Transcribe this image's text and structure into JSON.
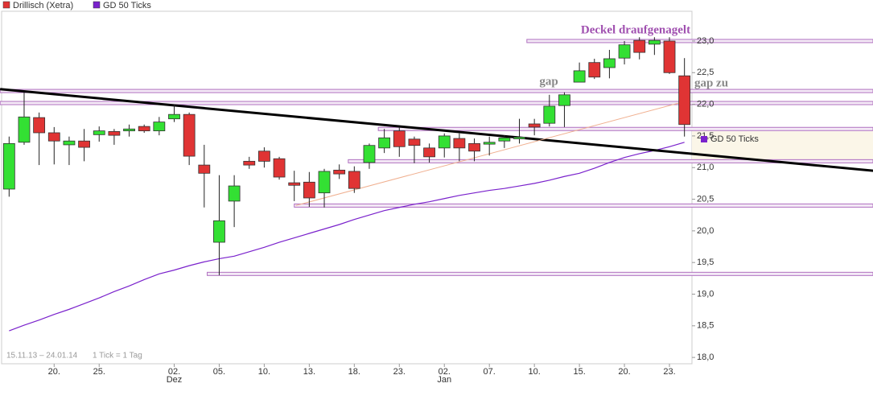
{
  "chart_data": {
    "type": "candlestick",
    "legend_position": "top-left",
    "categories": [
      null,
      null,
      null,
      "20.",
      null,
      null,
      "25.",
      null,
      null,
      null,
      null,
      "02.",
      null,
      null,
      "05.",
      null,
      null,
      "10.",
      null,
      null,
      "13.",
      null,
      null,
      "18.",
      null,
      null,
      "23.",
      null,
      null,
      "02.",
      null,
      null,
      "07.",
      null,
      null,
      "10.",
      null,
      null,
      "15.",
      null,
      null,
      "20.",
      null,
      null,
      "23.",
      null
    ],
    "category_sublabels": [
      null,
      null,
      null,
      null,
      null,
      null,
      null,
      null,
      null,
      null,
      null,
      "Dez",
      null,
      null,
      null,
      null,
      null,
      null,
      null,
      null,
      null,
      null,
      null,
      null,
      null,
      null,
      null,
      null,
      null,
      "Jan",
      null,
      null,
      null,
      null,
      null,
      null,
      null,
      null,
      null,
      null,
      null,
      null,
      null,
      null,
      null,
      null
    ],
    "series": [
      {
        "name": "Drillisch (Xetra)",
        "type": "candlestick",
        "color": "#e03434",
        "up_color": "#33e033",
        "open": [
          20.66,
          21.4,
          21.79,
          21.55,
          21.36,
          21.42,
          21.52,
          21.57,
          21.58,
          21.65,
          21.58,
          21.77,
          21.84,
          21.04,
          19.82,
          20.47,
          21.1,
          21.26,
          21.14,
          20.76,
          20.77,
          20.6,
          20.96,
          20.94,
          21.08,
          21.31,
          21.58,
          21.45,
          21.31,
          21.31,
          21.46,
          21.38,
          21.37,
          21.42,
          21.46,
          21.69,
          21.7,
          21.98,
          22.35,
          22.66,
          22.58,
          22.73,
          23.01,
          22.95,
          23.0,
          22.45
        ],
        "high": [
          21.49,
          22.19,
          21.87,
          21.64,
          21.49,
          21.61,
          21.65,
          21.61,
          21.68,
          21.68,
          21.8,
          21.99,
          21.87,
          21.36,
          20.88,
          20.88,
          21.17,
          21.32,
          21.17,
          20.95,
          20.93,
          20.98,
          21.05,
          21.02,
          21.38,
          21.61,
          21.64,
          21.49,
          21.38,
          21.54,
          21.54,
          21.46,
          21.49,
          21.51,
          21.77,
          21.77,
          22.15,
          22.19,
          22.66,
          22.72,
          22.86,
          23.0,
          23.06,
          23.06,
          23.06,
          22.73
        ],
        "low": [
          20.54,
          21.36,
          21.04,
          21.05,
          21.04,
          21.1,
          21.41,
          21.36,
          21.49,
          21.55,
          21.51,
          21.72,
          21.04,
          20.37,
          19.3,
          20.06,
          20.98,
          21.0,
          20.81,
          20.47,
          20.38,
          20.37,
          20.82,
          20.6,
          20.98,
          21.23,
          21.17,
          21.07,
          21.08,
          21.16,
          21.1,
          21.1,
          21.19,
          21.31,
          21.38,
          21.51,
          21.65,
          21.64,
          22.35,
          22.4,
          22.41,
          22.63,
          22.71,
          22.78,
          22.48,
          21.49
        ],
        "close": [
          21.38,
          21.8,
          21.55,
          21.42,
          21.42,
          21.32,
          21.58,
          21.51,
          21.61,
          21.58,
          21.72,
          21.84,
          21.18,
          20.91,
          20.16,
          20.71,
          21.04,
          21.1,
          20.85,
          20.72,
          20.52,
          20.94,
          20.9,
          20.67,
          21.35,
          21.47,
          21.33,
          21.35,
          21.17,
          21.5,
          21.31,
          21.26,
          21.4,
          21.47,
          21.48,
          21.64,
          21.97,
          22.15,
          22.53,
          22.43,
          22.72,
          22.94,
          22.82,
          23.01,
          22.5,
          21.68
        ]
      },
      {
        "name": "GD 50 Ticks",
        "type": "line",
        "color": "#7a22cc",
        "values": [
          18.42,
          18.51,
          18.59,
          18.68,
          18.76,
          18.85,
          18.94,
          19.04,
          19.13,
          19.23,
          19.32,
          19.38,
          19.45,
          19.51,
          19.56,
          19.6,
          19.67,
          19.74,
          19.82,
          19.89,
          19.96,
          20.03,
          20.1,
          20.18,
          20.25,
          20.32,
          20.37,
          20.42,
          20.46,
          20.51,
          20.56,
          20.6,
          20.64,
          20.67,
          20.71,
          20.75,
          20.8,
          20.86,
          20.91,
          20.99,
          21.08,
          21.16,
          21.22,
          21.27,
          21.33,
          21.4
        ]
      }
    ],
    "ylim": [
      17.9,
      23.47
    ],
    "yticks": [
      {
        "value": 18,
        "label": "18,0"
      },
      {
        "value": 18.5,
        "label": "18,5"
      },
      {
        "value": 19,
        "label": "19,0"
      },
      {
        "value": 19.5,
        "label": "19,5"
      },
      {
        "value": 20,
        "label": "20,0"
      },
      {
        "value": 20.5,
        "label": "20,5"
      },
      {
        "value": 21,
        "label": "21,0"
      },
      {
        "value": 21.5,
        "label": "21,5"
      },
      {
        "value": 22,
        "label": "22,0"
      },
      {
        "value": 22.5,
        "label": "22,5"
      },
      {
        "value": 23,
        "label": "23,0"
      }
    ],
    "levels": [
      {
        "value": 23.0,
        "start": 34.5
      },
      {
        "value": 22.21,
        "start": -0.6
      },
      {
        "value": 22.02,
        "start": -0.6
      },
      {
        "value": 21.61,
        "start": 24.6
      },
      {
        "value": 21.1,
        "start": 22.6
      },
      {
        "value": 20.4,
        "start": 19.0
      },
      {
        "value": 19.32,
        "start": 13.2
      }
    ],
    "level_color": "#b070c0",
    "trend_lines": [
      {
        "color": "#000000",
        "width": 3,
        "points": [
          {
            "x": -0.6,
            "y": 22.24
          },
          {
            "x": 57.6,
            "y": 20.95
          }
        ]
      },
      {
        "color": "#f0b090",
        "width": 1,
        "points": [
          {
            "x": 19.1,
            "y": 20.4
          },
          {
            "x": 45.1,
            "y": 22.05
          }
        ]
      }
    ],
    "annotations": [
      "Deckel draufgenagelt",
      "gap",
      "gap zu"
    ],
    "annotation_color": "#a050b0",
    "period": "15.11.13 – 24.01.14",
    "tick_note": "1 Tick = 1 Tag"
  }
}
